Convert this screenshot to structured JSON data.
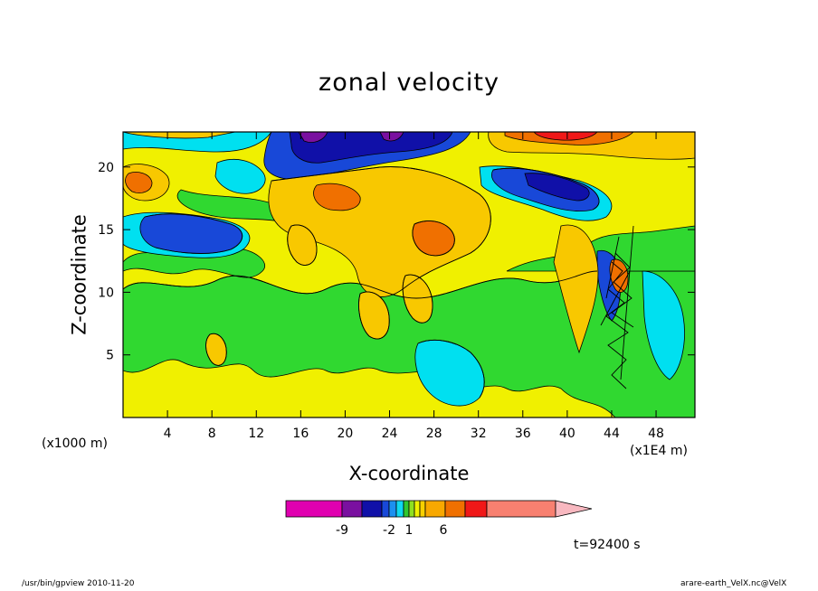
{
  "chart_data": {
    "type": "heatmap",
    "title": "zonal velocity",
    "xlabel": "X-coordinate",
    "ylabel": "Z-coordinate",
    "x_unit": "(x1000 m)",
    "x_unit_secondary": "(x1E4 m)",
    "x_ticks": [
      4,
      8,
      12,
      16,
      20,
      24,
      28,
      32,
      36,
      40,
      44,
      48
    ],
    "y_ticks": [
      5,
      10,
      15,
      20
    ],
    "xlim": [
      0,
      51.5
    ],
    "ylim": [
      0,
      22.8
    ],
    "colorbar": {
      "tick_labels": [
        "-9",
        "-2",
        "1",
        "6"
      ],
      "colors": [
        "#e000b0",
        "#7a10a0",
        "#1010a8",
        "#1848d8",
        "#1c90f0",
        "#10d8f0",
        "#30c830",
        "#90e020",
        "#f0f000",
        "#f8d000",
        "#f8a800",
        "#f07000",
        "#f01818",
        "#f88070",
        "#f8b8c0"
      ]
    },
    "field_colors": {
      "purple": "#7a10a0",
      "navy": "#1010a8",
      "blue": "#1848d8",
      "cyan": "#00e0f0",
      "green": "#30d830",
      "yellow": "#f0f000",
      "gold": "#f8c800",
      "orange": "#f07000",
      "red": "#f01818"
    },
    "annotation": "t=92400 s"
  },
  "footer": {
    "left": "/usr/bin/gpview   2010-11-20",
    "right": "arare-earth_VelX.nc@VelX"
  }
}
